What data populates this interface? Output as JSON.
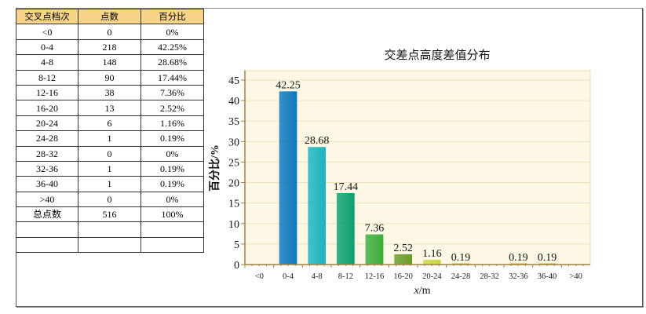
{
  "table": {
    "headers": [
      "交叉点档次",
      "点数",
      "百分比"
    ],
    "rows": [
      [
        "<0",
        "0",
        "0%"
      ],
      [
        "0-4",
        "218",
        "42.25%"
      ],
      [
        "4-8",
        "148",
        "28.68%"
      ],
      [
        "8-12",
        "90",
        "17.44%"
      ],
      [
        "12-16",
        "38",
        "7.36%"
      ],
      [
        "16-20",
        "13",
        "2.52%"
      ],
      [
        "20-24",
        "6",
        "1.16%"
      ],
      [
        "24-28",
        "1",
        "0.19%"
      ],
      [
        "28-32",
        "0",
        "0%"
      ],
      [
        "32-36",
        "1",
        "0.19%"
      ],
      [
        "36-40",
        "1",
        "0.19%"
      ],
      [
        ">40",
        "0",
        "0%"
      ],
      [
        "总点数",
        "516",
        "100%"
      ],
      [
        "",
        "",
        ""
      ],
      [
        "",
        "",
        ""
      ]
    ]
  },
  "chart_data": {
    "type": "bar",
    "title": "交差点高度差值分布",
    "xlabel_italic": "x",
    "xlabel_unit": "/m",
    "ylabel": "百分比/%",
    "categories": [
      "<0",
      "0-4",
      "4-8",
      "8-12",
      "12-16",
      "16-20",
      "20-24",
      "24-28",
      "28-32",
      "32-36",
      "36-40",
      ">40"
    ],
    "values": [
      0,
      42.25,
      28.68,
      17.44,
      7.36,
      2.52,
      1.16,
      0.19,
      0,
      0.19,
      0.19,
      0
    ],
    "data_labels": [
      "",
      "42.25",
      "28.68",
      "17.44",
      "7.36",
      "2.52",
      "1.16",
      "0.19",
      "",
      "0.19",
      "0.19",
      ""
    ],
    "colors": [
      "#0a78bf",
      "#0a78bf",
      "#1ab3c0",
      "#0aa070",
      "#3aae3a",
      "#6a9a2a",
      "#c8d840",
      "#e0a030",
      "#e0a030",
      "#e0a030",
      "#e0a030",
      "#e0a030"
    ],
    "yticks": [
      0,
      5,
      10,
      15,
      20,
      25,
      30,
      35,
      40,
      45
    ],
    "ylim": [
      0,
      46
    ],
    "grid": true
  }
}
